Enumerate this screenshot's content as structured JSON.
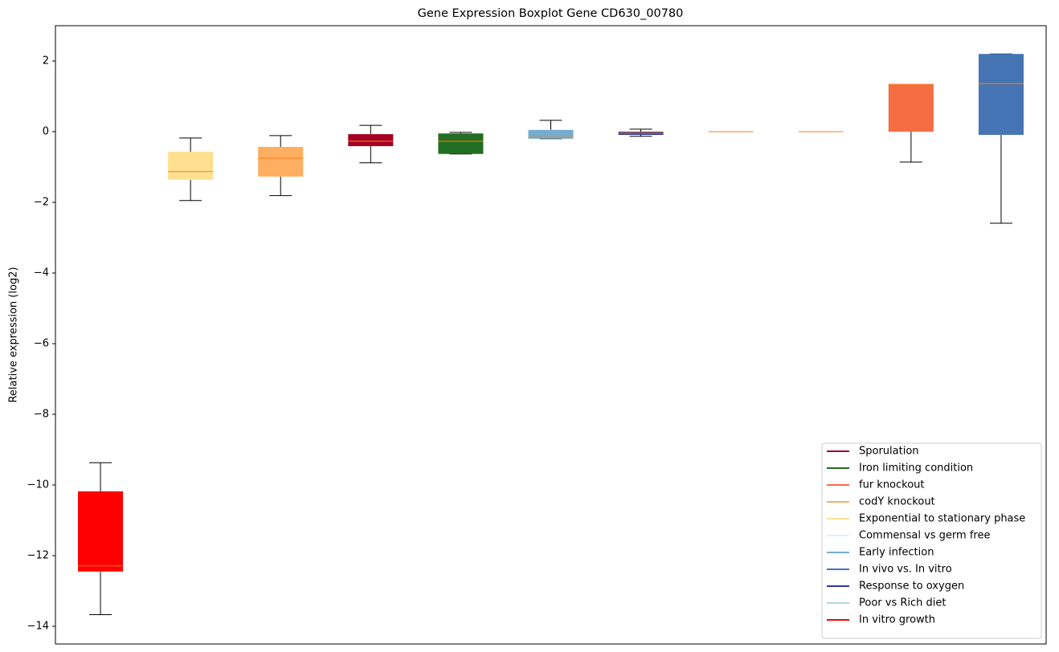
{
  "chart_data": {
    "type": "boxplot",
    "title": "Gene Expression Boxplot Gene CD630_00780",
    "y_label": "Relative expression (log2)",
    "xlim": [
      0.5,
      11.5
    ],
    "ylim": [
      -14.5,
      3.0
    ],
    "yticks": [
      {
        "value": -14,
        "label": "−14"
      },
      {
        "value": -12,
        "label": "−12"
      },
      {
        "value": -10,
        "label": "−10"
      },
      {
        "value": -8,
        "label": "−8"
      },
      {
        "value": -6,
        "label": "−6"
      },
      {
        "value": -4,
        "label": "−4"
      },
      {
        "value": -2,
        "label": "−2"
      },
      0,
      2
    ],
    "median_color": "#ff7f0e",
    "legend": "lower right",
    "series": [
      {
        "name": "Sporulation",
        "color": "#a50026",
        "x": 4,
        "whislo": -0.88,
        "q1": -0.41,
        "med": -0.27,
        "q3": -0.07,
        "whishi": 0.18
      },
      {
        "name": "Iron limiting condition",
        "color": "#226e22",
        "x": 5,
        "whislo": -0.63,
        "q1": -0.63,
        "med": -0.27,
        "q3": -0.05,
        "whishi": -0.02
      },
      {
        "name": "fur knockout",
        "color": "#f46d43",
        "x": 10,
        "whislo": -0.86,
        "q1": 0,
        "med": 1.34,
        "q3": 1.34,
        "whishi": 1.34
      },
      {
        "name": "codY knockout",
        "color": "#fdae61",
        "x": 3,
        "whislo": -1.81,
        "q1": -1.27,
        "med": -0.75,
        "q3": -0.43,
        "whishi": -0.11
      },
      {
        "name": "Exponential to stationary phase",
        "color": "#fee090",
        "x": 2,
        "whislo": -1.95,
        "q1": -1.36,
        "med": -1.13,
        "q3": -0.57,
        "whishi": -0.18
      },
      {
        "name": "Commensal vs germ free",
        "color": "#e0f3f8",
        "x": 8,
        "whislo": 0,
        "q1": 0,
        "med": 0,
        "q3": 0,
        "whishi": 0
      },
      {
        "name": "Early infection",
        "color": "#74add1",
        "x": 6,
        "whislo": -0.2,
        "q1": -0.2,
        "med": -0.16,
        "q3": 0.05,
        "whishi": 0.32
      },
      {
        "name": "In vivo vs. In vitro",
        "color": "#4575b4",
        "x": 11,
        "whislo": -2.59,
        "q1": -0.09,
        "med": 1.36,
        "q3": 2.2,
        "whishi": 2.2
      },
      {
        "name": "Response to oxygen",
        "color": "#313695",
        "x": 7,
        "whislo": -0.13,
        "q1": -0.09,
        "med": -0.04,
        "q3": 0,
        "whishi": 0.07
      },
      {
        "name": "Poor vs Rich diet",
        "color": "#abd9e9",
        "x": 9,
        "whislo": 0,
        "q1": 0,
        "med": 0,
        "q3": 0,
        "whishi": 0
      },
      {
        "name": "In vitro growth",
        "color": "#ff0000",
        "x": 1,
        "whislo": -13.67,
        "q1": -12.45,
        "med": -12.29,
        "q3": -10.18,
        "whishi": -9.37
      }
    ]
  }
}
